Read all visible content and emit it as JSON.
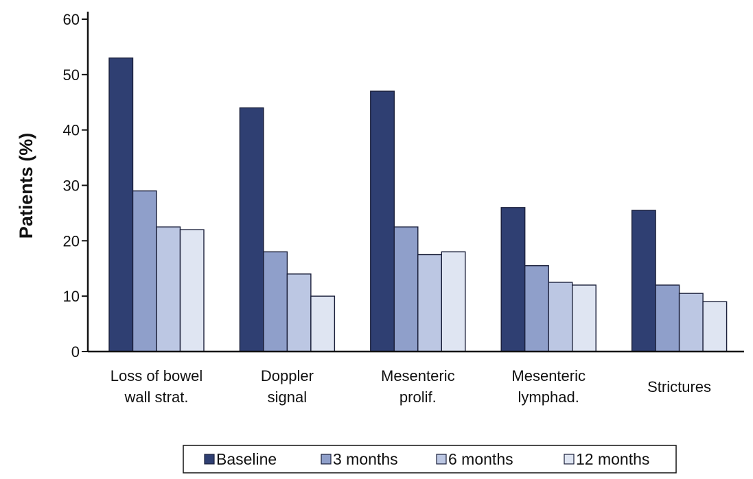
{
  "chart_data": {
    "type": "bar",
    "ylabel": "Patients (%)",
    "ylim": [
      0,
      60
    ],
    "yticks": [
      0,
      10,
      20,
      30,
      40,
      50,
      60
    ],
    "grid": false,
    "legend_position": "bottom",
    "categories": [
      [
        "Loss of bowel",
        "wall strat."
      ],
      [
        "Doppler",
        "signal"
      ],
      [
        "Mesenteric",
        "prolif."
      ],
      [
        "Mesenteric",
        "lymphad."
      ],
      [
        "Strictures"
      ]
    ],
    "series": [
      {
        "name": "Baseline",
        "color": "#2f3f72",
        "values": [
          53,
          44,
          47,
          26,
          25.5
        ]
      },
      {
        "name": "3 months",
        "color": "#8f9fca",
        "values": [
          29,
          18,
          22.5,
          15.5,
          12
        ]
      },
      {
        "name": "6 months",
        "color": "#bcc7e3",
        "values": [
          22.5,
          14,
          17.5,
          12.5,
          10.5
        ]
      },
      {
        "name": "12 months",
        "color": "#dfe5f2",
        "values": [
          22,
          10,
          18,
          12,
          9
        ]
      }
    ]
  }
}
